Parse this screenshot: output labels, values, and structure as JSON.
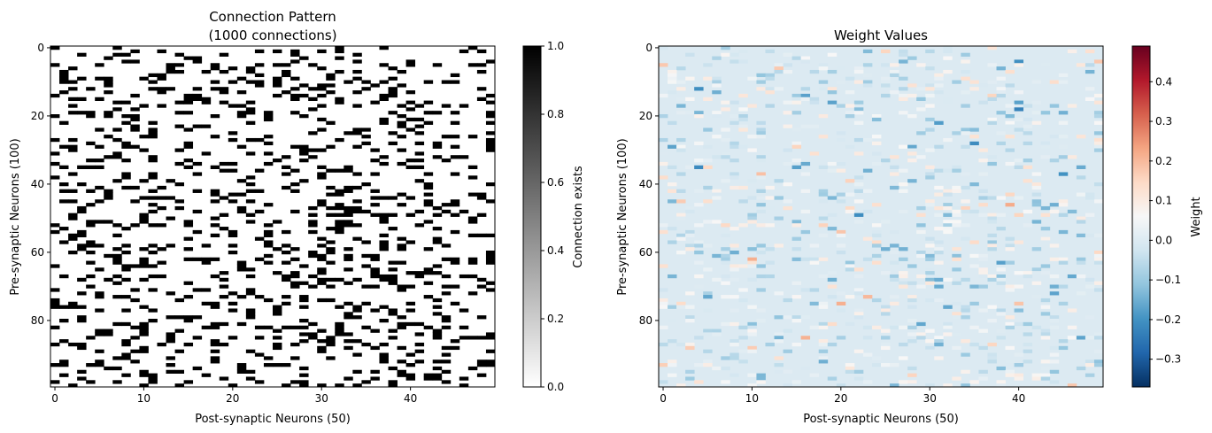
{
  "chart_data": [
    {
      "type": "heatmap",
      "title_lines": [
        "Connection Pattern",
        "(1000 connections)"
      ],
      "xlabel": "Post-synaptic Neurons (50)",
      "ylabel": "Pre-synaptic Neurons (100)",
      "n_rows": 100,
      "n_cols": 50,
      "n_connections": 1000,
      "colormap": "gray_r",
      "colormap_stops": [
        "#ffffff",
        "#000000"
      ],
      "x_ticks": [
        0,
        10,
        20,
        30,
        40
      ],
      "y_ticks": [
        0,
        20,
        40,
        60,
        80
      ],
      "colorbar": {
        "label": "Connection exists",
        "range": [
          0.0,
          1.0
        ],
        "ticks": [
          0.0,
          0.2,
          0.4,
          0.6,
          0.8,
          1.0
        ],
        "tick_labels": [
          "0.0",
          "0.2",
          "0.4",
          "0.6",
          "0.8",
          "1.0"
        ]
      },
      "random_seed": 7
    },
    {
      "type": "heatmap",
      "title_lines": [
        "Weight Values"
      ],
      "xlabel": "Post-synaptic Neurons (50)",
      "ylabel": "Pre-synaptic Neurons (100)",
      "n_rows": 100,
      "n_cols": 50,
      "colormap": "RdBu_r",
      "colormap_stops": [
        "#053061",
        "#2166ac",
        "#4393c3",
        "#92c5de",
        "#d1e5f0",
        "#f7f7f7",
        "#fddbc7",
        "#f4a582",
        "#d6604d",
        "#b2182b",
        "#67001f"
      ],
      "value_range": [
        -0.37,
        0.49
      ],
      "x_ticks": [
        0,
        10,
        20,
        30,
        40
      ],
      "y_ticks": [
        0,
        20,
        40,
        60,
        80
      ],
      "colorbar": {
        "label": "Weight",
        "range": [
          -0.37,
          0.49
        ],
        "ticks": [
          -0.3,
          -0.2,
          -0.1,
          0.0,
          0.1,
          0.2,
          0.3,
          0.4
        ],
        "tick_labels": [
          "−0.3",
          "−0.2",
          "−0.1",
          "0.0",
          "0.1",
          "0.2",
          "0.3",
          "0.4"
        ]
      },
      "random_seed": 7
    }
  ]
}
